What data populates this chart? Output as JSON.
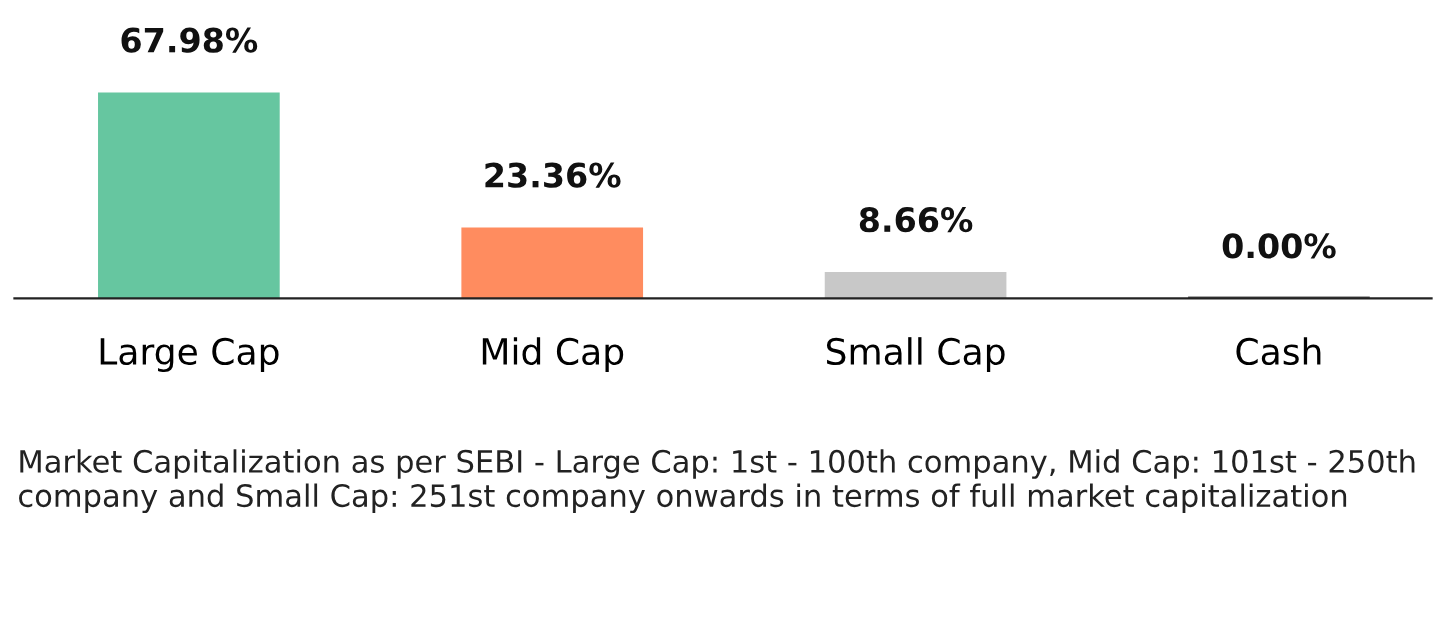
{
  "chart_data": {
    "type": "bar",
    "categories": [
      "Large Cap",
      "Mid Cap",
      "Small Cap",
      "Cash"
    ],
    "values": [
      67.98,
      23.36,
      8.66,
      0.0
    ],
    "colors": [
      "#66c6a0",
      "#ff8c5f",
      "#c8c8c8",
      "#555555"
    ],
    "value_labels": [
      "67.98%",
      "23.36%",
      "8.66%",
      "0.00%"
    ],
    "grid": false,
    "legend": false,
    "annotations": [
      "Market Capitalization as per SEBI - Large Cap: 1st - 100th company, Mid Cap: 101st - 250th company and Small Cap: 251st company onwards in terms of full market capitalization"
    ]
  }
}
